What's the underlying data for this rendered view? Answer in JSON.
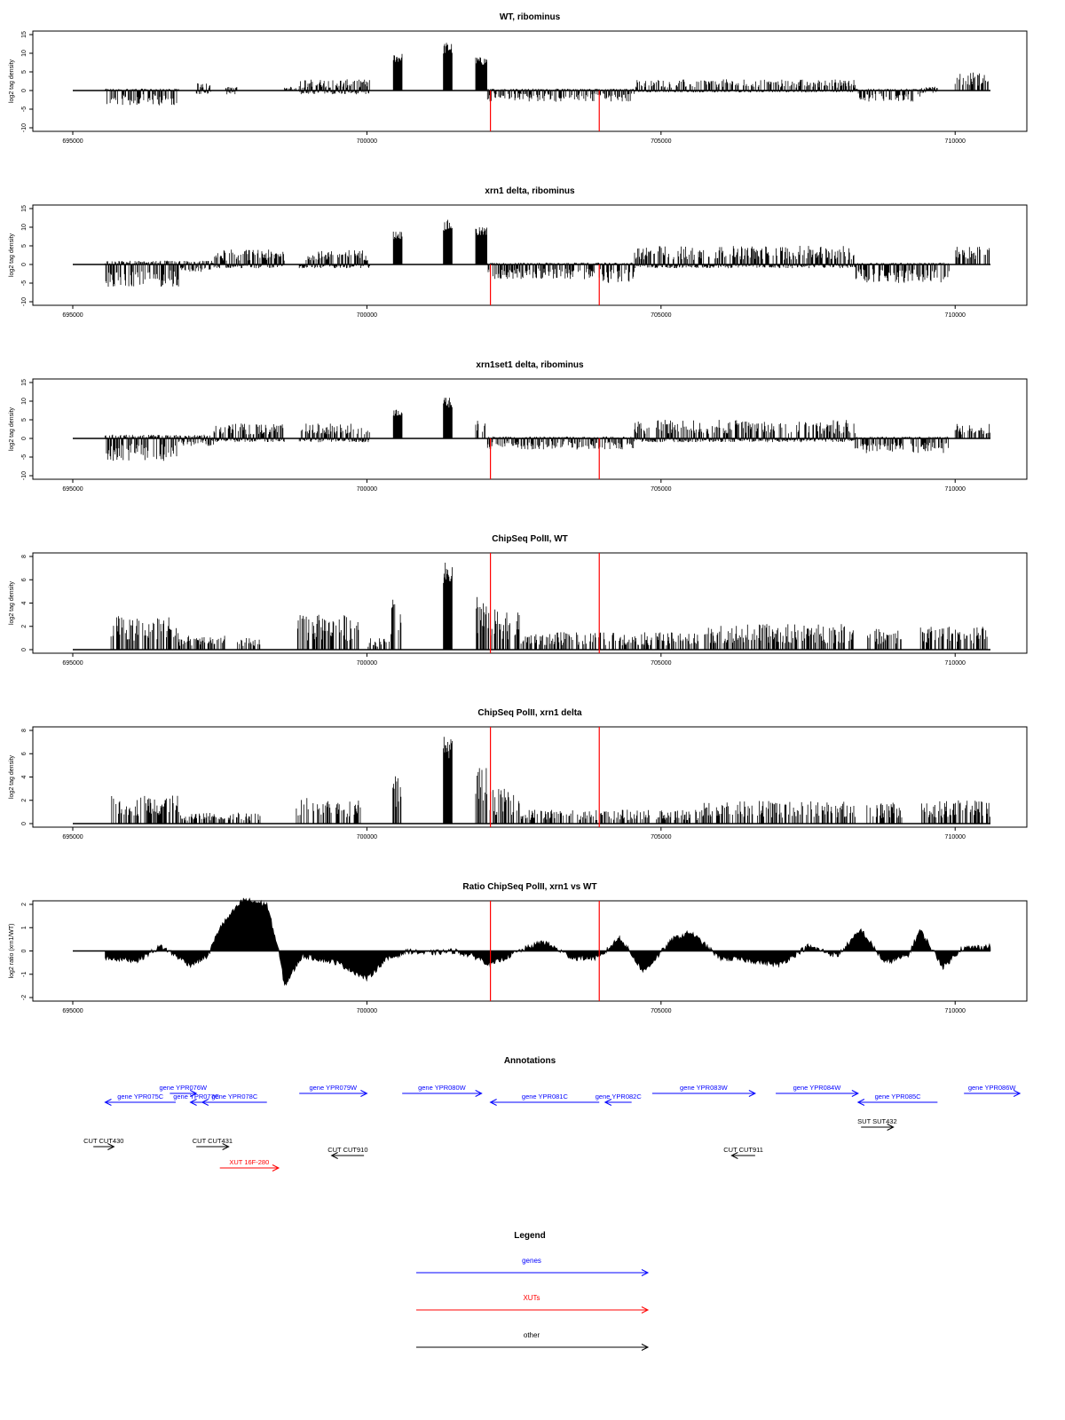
{
  "figure": {
    "x_range": [
      695000,
      710600
    ],
    "x_ticks": [
      695000,
      700000,
      705000,
      710000
    ],
    "red_lines_x": [
      702100,
      703950
    ]
  },
  "chart_data": [
    {
      "type": "bar",
      "title": "WT, ribominus",
      "ylabel": "log2 tag density",
      "ylim": [
        -10,
        15
      ],
      "y_ticks": [
        -10,
        -5,
        0,
        5,
        10,
        15
      ],
      "baseline": 0,
      "signal_profile": [
        {
          "x": [
            695550,
            696800
          ],
          "y": [
            -4,
            0.5
          ]
        },
        {
          "x": [
            697100,
            697350
          ],
          "y": [
            -1,
            2
          ]
        },
        {
          "x": [
            697600,
            697800
          ],
          "y": [
            -1,
            1
          ]
        },
        {
          "x": [
            698600,
            699000
          ],
          "y": [
            0,
            1
          ]
        },
        {
          "x": [
            698850,
            700050
          ],
          "y": [
            -1,
            3
          ]
        },
        {
          "x": [
            700450,
            700600
          ],
          "y": [
            0,
            10
          ]
        },
        {
          "x": [
            701300,
            701450
          ],
          "y": [
            0,
            13
          ]
        },
        {
          "x": [
            701850,
            702050
          ],
          "y": [
            0,
            9
          ]
        },
        {
          "x": [
            702050,
            703950
          ],
          "y": [
            -3,
            0.5
          ]
        },
        {
          "x": [
            703950,
            704550
          ],
          "y": [
            -3,
            0.5
          ]
        },
        {
          "x": [
            704550,
            708300
          ],
          "y": [
            -0.5,
            3
          ]
        },
        {
          "x": [
            708300,
            709400
          ],
          "y": [
            -3,
            0.5
          ]
        },
        {
          "x": [
            709400,
            709700
          ],
          "y": [
            -1,
            1
          ]
        },
        {
          "x": [
            710000,
            710600
          ],
          "y": [
            0,
            5
          ]
        }
      ]
    },
    {
      "type": "bar",
      "title": "xrn1 delta, ribominus",
      "ylabel": "log2 tag density",
      "ylim": [
        -10,
        15
      ],
      "y_ticks": [
        -10,
        -5,
        0,
        5,
        10,
        15
      ],
      "baseline": 0,
      "signal_profile": [
        {
          "x": [
            695550,
            696800
          ],
          "y": [
            -6,
            1
          ]
        },
        {
          "x": [
            696800,
            697400
          ],
          "y": [
            -2,
            1
          ]
        },
        {
          "x": [
            697400,
            698600
          ],
          "y": [
            -1,
            4
          ]
        },
        {
          "x": [
            698850,
            700050
          ],
          "y": [
            -1,
            4
          ]
        },
        {
          "x": [
            700450,
            700600
          ],
          "y": [
            0,
            9
          ]
        },
        {
          "x": [
            701300,
            701450
          ],
          "y": [
            0,
            12
          ]
        },
        {
          "x": [
            701850,
            702050
          ],
          "y": [
            0,
            10
          ]
        },
        {
          "x": [
            702050,
            703950
          ],
          "y": [
            -4,
            0.5
          ]
        },
        {
          "x": [
            703950,
            704550
          ],
          "y": [
            -5,
            0.5
          ]
        },
        {
          "x": [
            704550,
            708300
          ],
          "y": [
            -1,
            5
          ]
        },
        {
          "x": [
            708300,
            709900
          ],
          "y": [
            -5,
            0.5
          ]
        },
        {
          "x": [
            710000,
            710600
          ],
          "y": [
            0,
            5
          ]
        }
      ]
    },
    {
      "type": "bar",
      "title": "xrn1set1 delta, ribominus",
      "ylabel": "log2 tag density",
      "ylim": [
        -10,
        15
      ],
      "y_ticks": [
        -10,
        -5,
        0,
        5,
        10,
        15
      ],
      "baseline": 0,
      "signal_profile": [
        {
          "x": [
            695550,
            696800
          ],
          "y": [
            -6,
            1
          ]
        },
        {
          "x": [
            696800,
            697400
          ],
          "y": [
            -2,
            1
          ]
        },
        {
          "x": [
            697400,
            698600
          ],
          "y": [
            -1,
            4
          ]
        },
        {
          "x": [
            698850,
            700050
          ],
          "y": [
            -1,
            4
          ]
        },
        {
          "x": [
            700450,
            700600
          ],
          "y": [
            0,
            8
          ]
        },
        {
          "x": [
            701300,
            701450
          ],
          "y": [
            0,
            11
          ]
        },
        {
          "x": [
            701850,
            702050
          ],
          "y": [
            0,
            6
          ]
        },
        {
          "x": [
            702050,
            703950
          ],
          "y": [
            -3,
            0.5
          ]
        },
        {
          "x": [
            703950,
            704550
          ],
          "y": [
            -3,
            0.5
          ]
        },
        {
          "x": [
            704550,
            708300
          ],
          "y": [
            -1,
            5
          ]
        },
        {
          "x": [
            708300,
            709900
          ],
          "y": [
            -4,
            0.5
          ]
        },
        {
          "x": [
            710000,
            710600
          ],
          "y": [
            0,
            4
          ]
        }
      ]
    },
    {
      "type": "bar",
      "title": "ChipSeq PolII, WT",
      "ylabel": "log2 tag density",
      "ylim": [
        0,
        8
      ],
      "y_ticks": [
        0,
        2,
        4,
        6,
        8
      ],
      "baseline": 0,
      "signal_profile": [
        {
          "x": [
            695650,
            696800
          ],
          "y": [
            0,
            3
          ]
        },
        {
          "x": [
            696800,
            697600
          ],
          "y": [
            0,
            1.2
          ]
        },
        {
          "x": [
            697800,
            698200
          ],
          "y": [
            0,
            1
          ]
        },
        {
          "x": [
            698800,
            699900
          ],
          "y": [
            0,
            3
          ]
        },
        {
          "x": [
            700000,
            700400
          ],
          "y": [
            0,
            1
          ]
        },
        {
          "x": [
            700400,
            700600
          ],
          "y": [
            0,
            4.5
          ]
        },
        {
          "x": [
            701300,
            701450
          ],
          "y": [
            0,
            7.5
          ]
        },
        {
          "x": [
            701850,
            702050
          ],
          "y": [
            0,
            5
          ]
        },
        {
          "x": [
            702050,
            702600
          ],
          "y": [
            0,
            3.5
          ]
        },
        {
          "x": [
            702600,
            705700
          ],
          "y": [
            0,
            1.5
          ]
        },
        {
          "x": [
            705700,
            708300
          ],
          "y": [
            0,
            2.2
          ]
        },
        {
          "x": [
            708500,
            709100
          ],
          "y": [
            0,
            1.8
          ]
        },
        {
          "x": [
            709400,
            710600
          ],
          "y": [
            0,
            2
          ]
        }
      ]
    },
    {
      "type": "bar",
      "title": "ChipSeq PolII, xrn1 delta",
      "ylabel": "log2 tag density",
      "ylim": [
        0,
        8
      ],
      "y_ticks": [
        0,
        2,
        4,
        6,
        8
      ],
      "baseline": 0,
      "signal_profile": [
        {
          "x": [
            695650,
            696800
          ],
          "y": [
            0,
            2.5
          ]
        },
        {
          "x": [
            696800,
            698200
          ],
          "y": [
            0,
            1
          ]
        },
        {
          "x": [
            698800,
            699900
          ],
          "y": [
            0,
            2.2
          ]
        },
        {
          "x": [
            700400,
            700600
          ],
          "y": [
            0,
            4.5
          ]
        },
        {
          "x": [
            701300,
            701450
          ],
          "y": [
            0,
            7.5
          ]
        },
        {
          "x": [
            701850,
            702050
          ],
          "y": [
            0,
            5
          ]
        },
        {
          "x": [
            702050,
            702600
          ],
          "y": [
            0,
            3
          ]
        },
        {
          "x": [
            702600,
            705700
          ],
          "y": [
            0,
            1.2
          ]
        },
        {
          "x": [
            705700,
            708300
          ],
          "y": [
            0,
            2
          ]
        },
        {
          "x": [
            708500,
            709100
          ],
          "y": [
            0,
            1.8
          ]
        },
        {
          "x": [
            709400,
            710600
          ],
          "y": [
            0,
            2
          ]
        }
      ]
    },
    {
      "type": "area",
      "title": "Ratio ChipSeq PolII, xrn1 vs WT",
      "ylabel": "log2 ratio (xrn1/WT)",
      "ylim": [
        -2,
        2
      ],
      "y_ticks": [
        -2,
        -1,
        0,
        1,
        2
      ],
      "x": [
        695550,
        696100,
        696500,
        697000,
        697300,
        697500,
        697900,
        698300,
        698500,
        698600,
        698900,
        699500,
        700000,
        700300,
        700700,
        701000,
        701500,
        701900,
        702100,
        702500,
        703000,
        703500,
        703950,
        704300,
        704700,
        705200,
        705500,
        706000,
        706500,
        707000,
        707500,
        708000,
        708400,
        708800,
        709200,
        709400,
        709800,
        710100,
        710600
      ],
      "y": [
        -0.3,
        -0.4,
        0.2,
        -0.6,
        -0.2,
        1.0,
        2.2,
        2.0,
        0.0,
        -1.5,
        -0.2,
        -0.5,
        -1.2,
        -0.4,
        0.0,
        -0.1,
        0.0,
        -0.3,
        -0.6,
        -0.1,
        0.4,
        -0.3,
        -0.3,
        0.6,
        -0.9,
        0.5,
        0.8,
        -0.3,
        -0.4,
        -0.6,
        0.2,
        -0.2,
        0.9,
        -0.5,
        -0.2,
        0.9,
        -0.7,
        0.1,
        0.2
      ]
    }
  ],
  "annotations": {
    "title": "Annotations",
    "items": [
      {
        "label": "gene YPR076W",
        "start": 696650,
        "end": 697100,
        "strand": "+",
        "row": 0,
        "color": "#0000ff"
      },
      {
        "label": "gene YPR075C",
        "start": 695550,
        "end": 696750,
        "strand": "-",
        "row": 1,
        "color": "#0000ff"
      },
      {
        "label": "gene YPR077C",
        "start": 697000,
        "end": 697200,
        "strand": "-",
        "row": 1,
        "color": "#0000ff"
      },
      {
        "label": "gene YPR078C",
        "start": 697200,
        "end": 698300,
        "strand": "-",
        "row": 1,
        "color": "#0000ff"
      },
      {
        "label": "gene YPR079W",
        "start": 698850,
        "end": 700000,
        "strand": "+",
        "row": 0,
        "color": "#0000ff"
      },
      {
        "label": "gene YPR080W",
        "start": 700600,
        "end": 701950,
        "strand": "+",
        "row": 0,
        "color": "#0000ff"
      },
      {
        "label": "gene YPR081C",
        "start": 702100,
        "end": 703950,
        "strand": "-",
        "row": 1,
        "color": "#0000ff"
      },
      {
        "label": "gene YPR082C",
        "start": 704050,
        "end": 704500,
        "strand": "-",
        "row": 1,
        "color": "#0000ff"
      },
      {
        "label": "gene YPR083W",
        "start": 704850,
        "end": 706600,
        "strand": "+",
        "row": 0,
        "color": "#0000ff"
      },
      {
        "label": "gene YPR084W",
        "start": 706950,
        "end": 708350,
        "strand": "+",
        "row": 0,
        "color": "#0000ff"
      },
      {
        "label": "gene YPR085C",
        "start": 708350,
        "end": 709700,
        "strand": "-",
        "row": 1,
        "color": "#0000ff"
      },
      {
        "label": "gene YPR086W",
        "start": 710150,
        "end": 711100,
        "strand": "+",
        "row": 0,
        "color": "#0000ff"
      },
      {
        "label": "SUT SUT432",
        "start": 708400,
        "end": 708950,
        "strand": "+",
        "row": 2,
        "color": "#000000"
      },
      {
        "label": "CUT CUT430",
        "start": 695350,
        "end": 695700,
        "strand": "+",
        "row": 3,
        "color": "#000000"
      },
      {
        "label": "CUT CUT431",
        "start": 697100,
        "end": 697650,
        "strand": "+",
        "row": 3,
        "color": "#000000"
      },
      {
        "label": "CUT CUT910",
        "start": 699400,
        "end": 699950,
        "strand": "-",
        "row": 4,
        "color": "#000000"
      },
      {
        "label": "CUT CUT911",
        "start": 706200,
        "end": 706600,
        "strand": "-",
        "row": 4,
        "color": "#000000"
      },
      {
        "label": "XUT 16F-280",
        "start": 697500,
        "end": 698500,
        "strand": "+",
        "row": 5,
        "color": "#ff0000"
      }
    ]
  },
  "legend": {
    "title": "Legend",
    "items": [
      {
        "label": "genes",
        "color": "#0000ff"
      },
      {
        "label": "XUTs",
        "color": "#ff0000"
      },
      {
        "label": "other",
        "color": "#000000"
      }
    ]
  }
}
